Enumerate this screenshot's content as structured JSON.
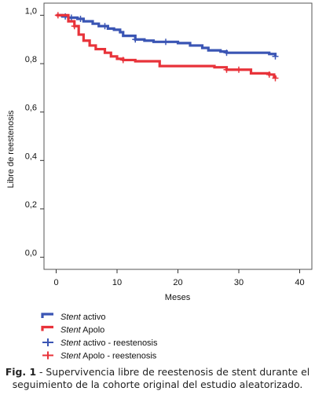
{
  "chart_data": {
    "type": "line",
    "subtype": "kaplan-meier step",
    "xlabel": "Meses",
    "ylabel": "Libre de reestenosis",
    "xlim": [
      -2,
      42
    ],
    "ylim": [
      -0.05,
      1.05
    ],
    "x_ticks": [
      0,
      10,
      20,
      30,
      40
    ],
    "x_tick_labels": [
      "0",
      "10",
      "20",
      "30",
      "40"
    ],
    "y_ticks": [
      0.0,
      0.2,
      0.4,
      0.6,
      0.8,
      1.0
    ],
    "y_tick_labels": [
      "0,0",
      "0,2",
      "0,4",
      "0,6",
      "0,8",
      "1,0"
    ],
    "grid": false,
    "series": [
      {
        "name": "Stent activo",
        "color": "#3a55b4",
        "points": [
          [
            0,
            1.0
          ],
          [
            1,
            0.995
          ],
          [
            2,
            0.99
          ],
          [
            3.5,
            0.985
          ],
          [
            4.5,
            0.975
          ],
          [
            6,
            0.965
          ],
          [
            7,
            0.955
          ],
          [
            8.5,
            0.945
          ],
          [
            9.5,
            0.94
          ],
          [
            10.5,
            0.93
          ],
          [
            11,
            0.915
          ],
          [
            13,
            0.9
          ],
          [
            14.5,
            0.895
          ],
          [
            16,
            0.89
          ],
          [
            20,
            0.885
          ],
          [
            22,
            0.875
          ],
          [
            24,
            0.865
          ],
          [
            25,
            0.855
          ],
          [
            27,
            0.85
          ],
          [
            28,
            0.845
          ],
          [
            35,
            0.84
          ],
          [
            36,
            0.83
          ]
        ],
        "censor_x": [
          1.5,
          2.5,
          4,
          8,
          13,
          18,
          28,
          36
        ]
      },
      {
        "name": "Stent Apolo",
        "color": "#e8333a",
        "points": [
          [
            0,
            1.0
          ],
          [
            2,
            0.975
          ],
          [
            3,
            0.955
          ],
          [
            3.7,
            0.92
          ],
          [
            4.5,
            0.895
          ],
          [
            5.5,
            0.875
          ],
          [
            6.5,
            0.86
          ],
          [
            8,
            0.845
          ],
          [
            9,
            0.83
          ],
          [
            10,
            0.82
          ],
          [
            11,
            0.815
          ],
          [
            13,
            0.81
          ],
          [
            17,
            0.79
          ],
          [
            26,
            0.785
          ],
          [
            28,
            0.775
          ],
          [
            32,
            0.76
          ],
          [
            35,
            0.755
          ],
          [
            35.8,
            0.745
          ],
          [
            36,
            0.74
          ]
        ],
        "censor_x": [
          0.3,
          3,
          11,
          28,
          30,
          35,
          36
        ]
      }
    ],
    "legend": {
      "placement": "bottom-left",
      "entries": [
        {
          "italic": "Stent",
          "rest": " activo",
          "kind": "line",
          "color": "#3a55b4"
        },
        {
          "italic": "Stent",
          "rest": " Apolo",
          "kind": "line",
          "color": "#e8333a"
        },
        {
          "italic": "Stent",
          "rest": " activo - reestenosis",
          "kind": "cross",
          "color": "#3a55b4"
        },
        {
          "italic": "Stent",
          "rest": " Apolo - reestenosis",
          "kind": "cross",
          "color": "#e8333a"
        }
      ]
    }
  },
  "caption": {
    "label": "Fig. 1",
    "text": " - Supervivencia libre de reestenosis de stent durante el seguimiento de la cohorte original del estudio aleatorizado."
  }
}
